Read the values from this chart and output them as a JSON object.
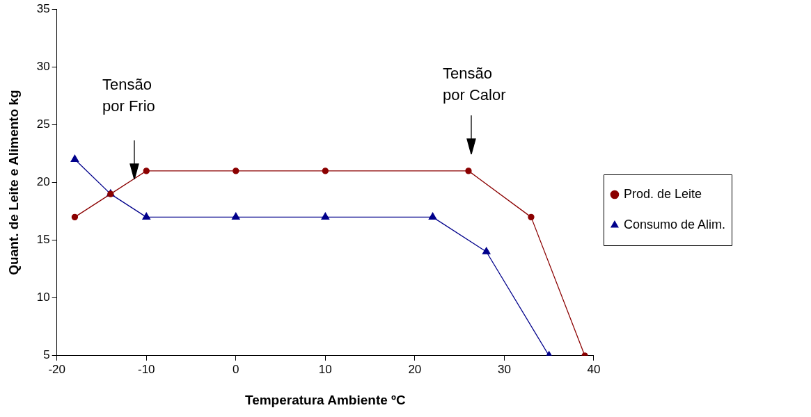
{
  "chart_data": {
    "type": "line",
    "xlabel": "Temperatura Ambiente ºC",
    "ylabel": "Quant. de Leite e Alimento kg",
    "xlim": [
      -20,
      40
    ],
    "xticks": [
      -20,
      -10,
      0,
      10,
      20,
      30,
      40
    ],
    "ylim": [
      5,
      35
    ],
    "yticks": [
      5,
      10,
      15,
      20,
      25,
      30,
      35
    ],
    "grid": false,
    "legend": "right",
    "line_style": "solid",
    "series": [
      {
        "name": "Prod. de Leite",
        "color": "#8b0000",
        "marker": "circle",
        "x": [
          -18,
          -14,
          -10,
          0,
          10,
          26,
          33,
          39
        ],
        "values": [
          17,
          19,
          21,
          21,
          21,
          21,
          17,
          5
        ]
      },
      {
        "name": "Consumo de Alim.",
        "color": "#00008b",
        "marker": "triangle",
        "x": [
          -18,
          -14,
          -10,
          0,
          10,
          22,
          28,
          35
        ],
        "values": [
          22,
          19,
          17,
          17,
          17,
          17,
          14,
          5
        ]
      }
    ],
    "annotations": [
      "Tensão\npor Frio",
      "Tensão\npor Calor"
    ]
  }
}
